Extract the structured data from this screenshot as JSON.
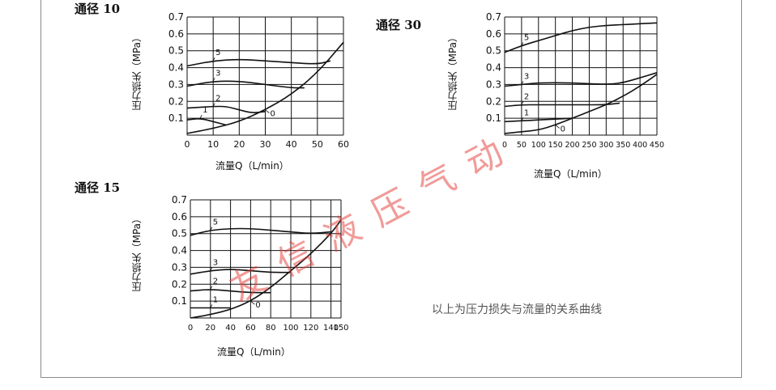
{
  "caption": "以上为压力损失与流量的关系曲线",
  "watermark": "友信液压气动",
  "colors": {
    "line": "#111111",
    "grid": "#111111",
    "watermark": "#e53935"
  },
  "chart_data": [
    {
      "type": "line",
      "title": "通径 10",
      "xlabel": "流量Q（L/min）",
      "ylabel": "压力损失（MPa）",
      "xlim": [
        0,
        60
      ],
      "ylim": [
        0,
        0.7
      ],
      "xticks": [
        "0",
        "10",
        "20",
        "30",
        "40",
        "50",
        "60"
      ],
      "yticks": [
        "0.1",
        "0.2",
        "0.3",
        "0.4",
        "0.5",
        "0.6",
        "0.7"
      ],
      "grid": true,
      "series": [
        {
          "name": "5",
          "points": [
            [
              0,
              0.41
            ],
            [
              10,
              0.44
            ],
            [
              20,
              0.45
            ],
            [
              30,
              0.44
            ],
            [
              40,
              0.43
            ],
            [
              50,
              0.42
            ],
            [
              55,
              0.44
            ]
          ]
        },
        {
          "name": "3",
          "points": [
            [
              0,
              0.29
            ],
            [
              10,
              0.32
            ],
            [
              20,
              0.32
            ],
            [
              30,
              0.3
            ],
            [
              40,
              0.28
            ],
            [
              45,
              0.28
            ]
          ]
        },
        {
          "name": "2",
          "points": [
            [
              0,
              0.16
            ],
            [
              10,
              0.17
            ],
            [
              15,
              0.17
            ],
            [
              20,
              0.15
            ],
            [
              25,
              0.13
            ],
            [
              30,
              0.14
            ]
          ]
        },
        {
          "name": "1",
          "points": [
            [
              0,
              0.09
            ],
            [
              5,
              0.1
            ],
            [
              10,
              0.08
            ],
            [
              15,
              0.06
            ]
          ]
        },
        {
          "name": "0",
          "points": [
            [
              0,
              0.01
            ],
            [
              10,
              0.04
            ],
            [
              20,
              0.08
            ],
            [
              30,
              0.15
            ],
            [
              40,
              0.24
            ],
            [
              50,
              0.37
            ],
            [
              60,
              0.55
            ]
          ]
        }
      ]
    },
    {
      "type": "line",
      "title": "通径 30",
      "xlabel": "流量Q（L/min）",
      "ylabel": "压力损失（MPa）",
      "xlim": [
        0,
        450
      ],
      "ylim": [
        0,
        0.7
      ],
      "xticks": [
        "0",
        "50",
        "100",
        "150",
        "200",
        "250",
        "300",
        "350",
        "400",
        "450"
      ],
      "yticks": [
        "0.1",
        "0.2",
        "0.3",
        "0.4",
        "0.5",
        "0.6",
        "0.7"
      ],
      "grid": true,
      "series": [
        {
          "name": "5",
          "points": [
            [
              0,
              0.49
            ],
            [
              50,
              0.53
            ],
            [
              100,
              0.56
            ],
            [
              150,
              0.59
            ],
            [
              200,
              0.62
            ],
            [
              250,
              0.64
            ],
            [
              300,
              0.65
            ],
            [
              350,
              0.655
            ],
            [
              400,
              0.66
            ],
            [
              450,
              0.665
            ]
          ]
        },
        {
          "name": "3",
          "points": [
            [
              0,
              0.29
            ],
            [
              50,
              0.3
            ],
            [
              100,
              0.31
            ],
            [
              200,
              0.31
            ],
            [
              300,
              0.3
            ],
            [
              350,
              0.31
            ],
            [
              400,
              0.34
            ],
            [
              450,
              0.37
            ]
          ]
        },
        {
          "name": "2",
          "points": [
            [
              0,
              0.17
            ],
            [
              50,
              0.18
            ],
            [
              100,
              0.18
            ],
            [
              200,
              0.18
            ],
            [
              300,
              0.18
            ],
            [
              340,
              0.19
            ]
          ]
        },
        {
          "name": "1",
          "points": [
            [
              0,
              0.08
            ],
            [
              50,
              0.085
            ],
            [
              100,
              0.09
            ],
            [
              150,
              0.095
            ],
            [
              200,
              0.1
            ]
          ]
        },
        {
          "name": "0",
          "points": [
            [
              0,
              0.01
            ],
            [
              50,
              0.02
            ],
            [
              100,
              0.03
            ],
            [
              150,
              0.06
            ],
            [
              200,
              0.1
            ],
            [
              250,
              0.14
            ],
            [
              300,
              0.18
            ],
            [
              350,
              0.23
            ],
            [
              400,
              0.29
            ],
            [
              450,
              0.36
            ]
          ]
        }
      ]
    },
    {
      "type": "line",
      "title": "通径 15",
      "xlabel": "流量Q（L/min）",
      "ylabel": "压力损失（MPa）",
      "xlim": [
        0,
        150
      ],
      "ylim": [
        0,
        0.7
      ],
      "xticks": [
        "0",
        "20",
        "40",
        "60",
        "80",
        "100",
        "120",
        "140",
        "150"
      ],
      "yticks": [
        "0.1",
        "0.2",
        "0.3",
        "0.4",
        "0.5",
        "0.6",
        "0.7"
      ],
      "grid": true,
      "series": [
        {
          "name": "5",
          "points": [
            [
              0,
              0.49
            ],
            [
              20,
              0.52
            ],
            [
              40,
              0.53
            ],
            [
              60,
              0.53
            ],
            [
              80,
              0.52
            ],
            [
              100,
              0.51
            ],
            [
              120,
              0.5
            ],
            [
              140,
              0.51
            ]
          ]
        },
        {
          "name": "3",
          "points": [
            [
              0,
              0.26
            ],
            [
              20,
              0.28
            ],
            [
              40,
              0.29
            ],
            [
              60,
              0.28
            ],
            [
              80,
              0.27
            ],
            [
              100,
              0.27
            ]
          ]
        },
        {
          "name": "2",
          "points": [
            [
              0,
              0.16
            ],
            [
              20,
              0.17
            ],
            [
              40,
              0.16
            ],
            [
              60,
              0.15
            ],
            [
              80,
              0.15
            ]
          ]
        },
        {
          "name": "1",
          "points": [
            [
              0,
              0.06
            ],
            [
              20,
              0.06
            ],
            [
              40,
              0.06
            ]
          ]
        },
        {
          "name": "0",
          "points": [
            [
              0,
              0.0
            ],
            [
              20,
              0.02
            ],
            [
              40,
              0.05
            ],
            [
              60,
              0.1
            ],
            [
              80,
              0.18
            ],
            [
              100,
              0.28
            ],
            [
              120,
              0.38
            ],
            [
              140,
              0.5
            ],
            [
              150,
              0.58
            ]
          ]
        }
      ]
    }
  ]
}
